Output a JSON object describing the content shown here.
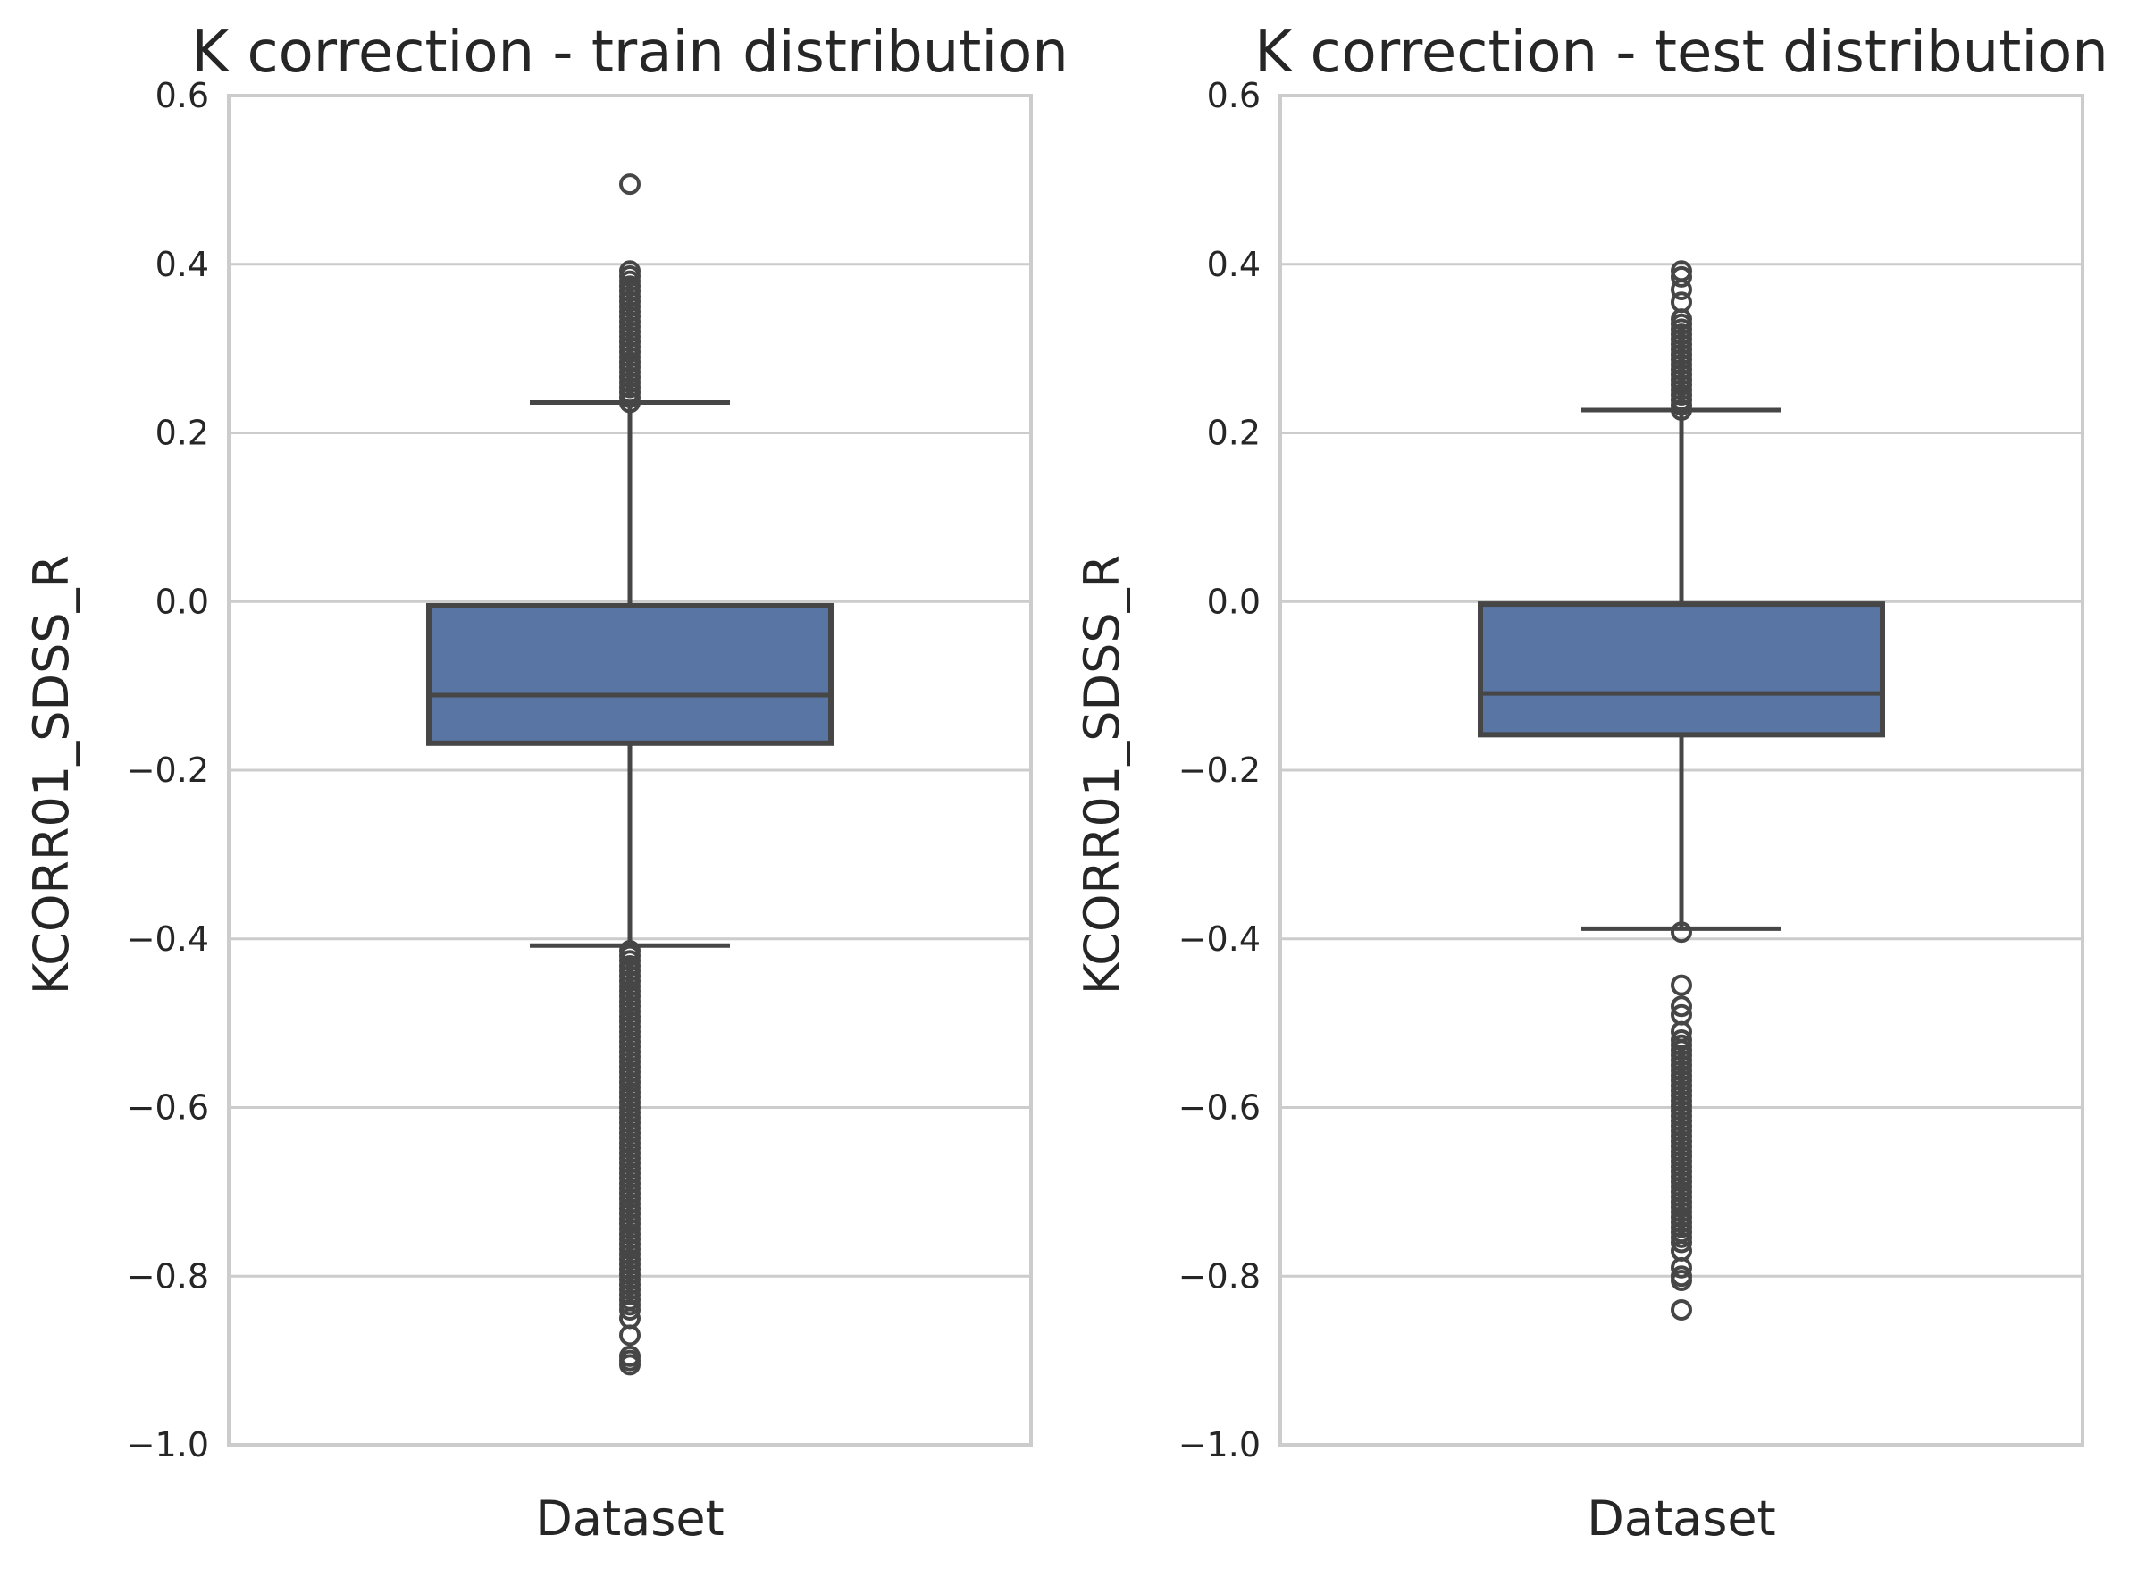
{
  "chart_data": [
    {
      "type": "box",
      "title": "K correction - train distribution",
      "xlabel": "Dataset",
      "ylabel": "KCORR01_SDSS_R",
      "ylim": [
        -1.0,
        0.6
      ],
      "yticks": [
        -1.0,
        -0.8,
        -0.6,
        -0.4,
        -0.2,
        0.0,
        0.2,
        0.4,
        0.6
      ],
      "ytick_labels": [
        "−1.0",
        "−0.8",
        "−0.6",
        "−0.4",
        "−0.2",
        "0.0",
        "0.2",
        "0.4",
        "0.6"
      ],
      "grid": "horizontal",
      "color": "#5875a4",
      "stats": {
        "whisker_low": -0.408,
        "q1": -0.168,
        "median": -0.111,
        "q3": -0.005,
        "whisker_high": 0.236
      },
      "fliers_high": {
        "min": 0.236,
        "max": 0.395,
        "extra": [
          0.495
        ]
      },
      "fliers_low": {
        "max": -0.41,
        "min": -0.84,
        "extra": [
          -0.85,
          -0.87,
          -0.895,
          -0.9,
          -0.905
        ]
      }
    },
    {
      "type": "box",
      "title": "K correction - test distribution",
      "xlabel": "Dataset",
      "ylabel": "KCORR01_SDSS_R",
      "ylim": [
        -1.0,
        0.6
      ],
      "yticks": [
        -1.0,
        -0.8,
        -0.6,
        -0.4,
        -0.2,
        0.0,
        0.2,
        0.4,
        0.6
      ],
      "ytick_labels": [
        "−1.0",
        "−0.8",
        "−0.6",
        "−0.4",
        "−0.2",
        "0.0",
        "0.2",
        "0.4",
        "0.6"
      ],
      "grid": "horizontal",
      "color": "#5875a4",
      "stats": {
        "whisker_low": -0.388,
        "q1": -0.158,
        "median": -0.109,
        "q3": -0.003,
        "whisker_high": 0.227
      },
      "fliers_high": {
        "min": 0.227,
        "max": 0.34,
        "extra": [
          0.355,
          0.37,
          0.385,
          0.392
        ]
      },
      "fliers_low": {
        "max": -0.52,
        "min": -0.76,
        "extra": [
          -0.392,
          -0.455,
          -0.48,
          -0.49,
          -0.51,
          -0.77,
          -0.79,
          -0.8,
          -0.805,
          -0.84
        ]
      }
    }
  ]
}
